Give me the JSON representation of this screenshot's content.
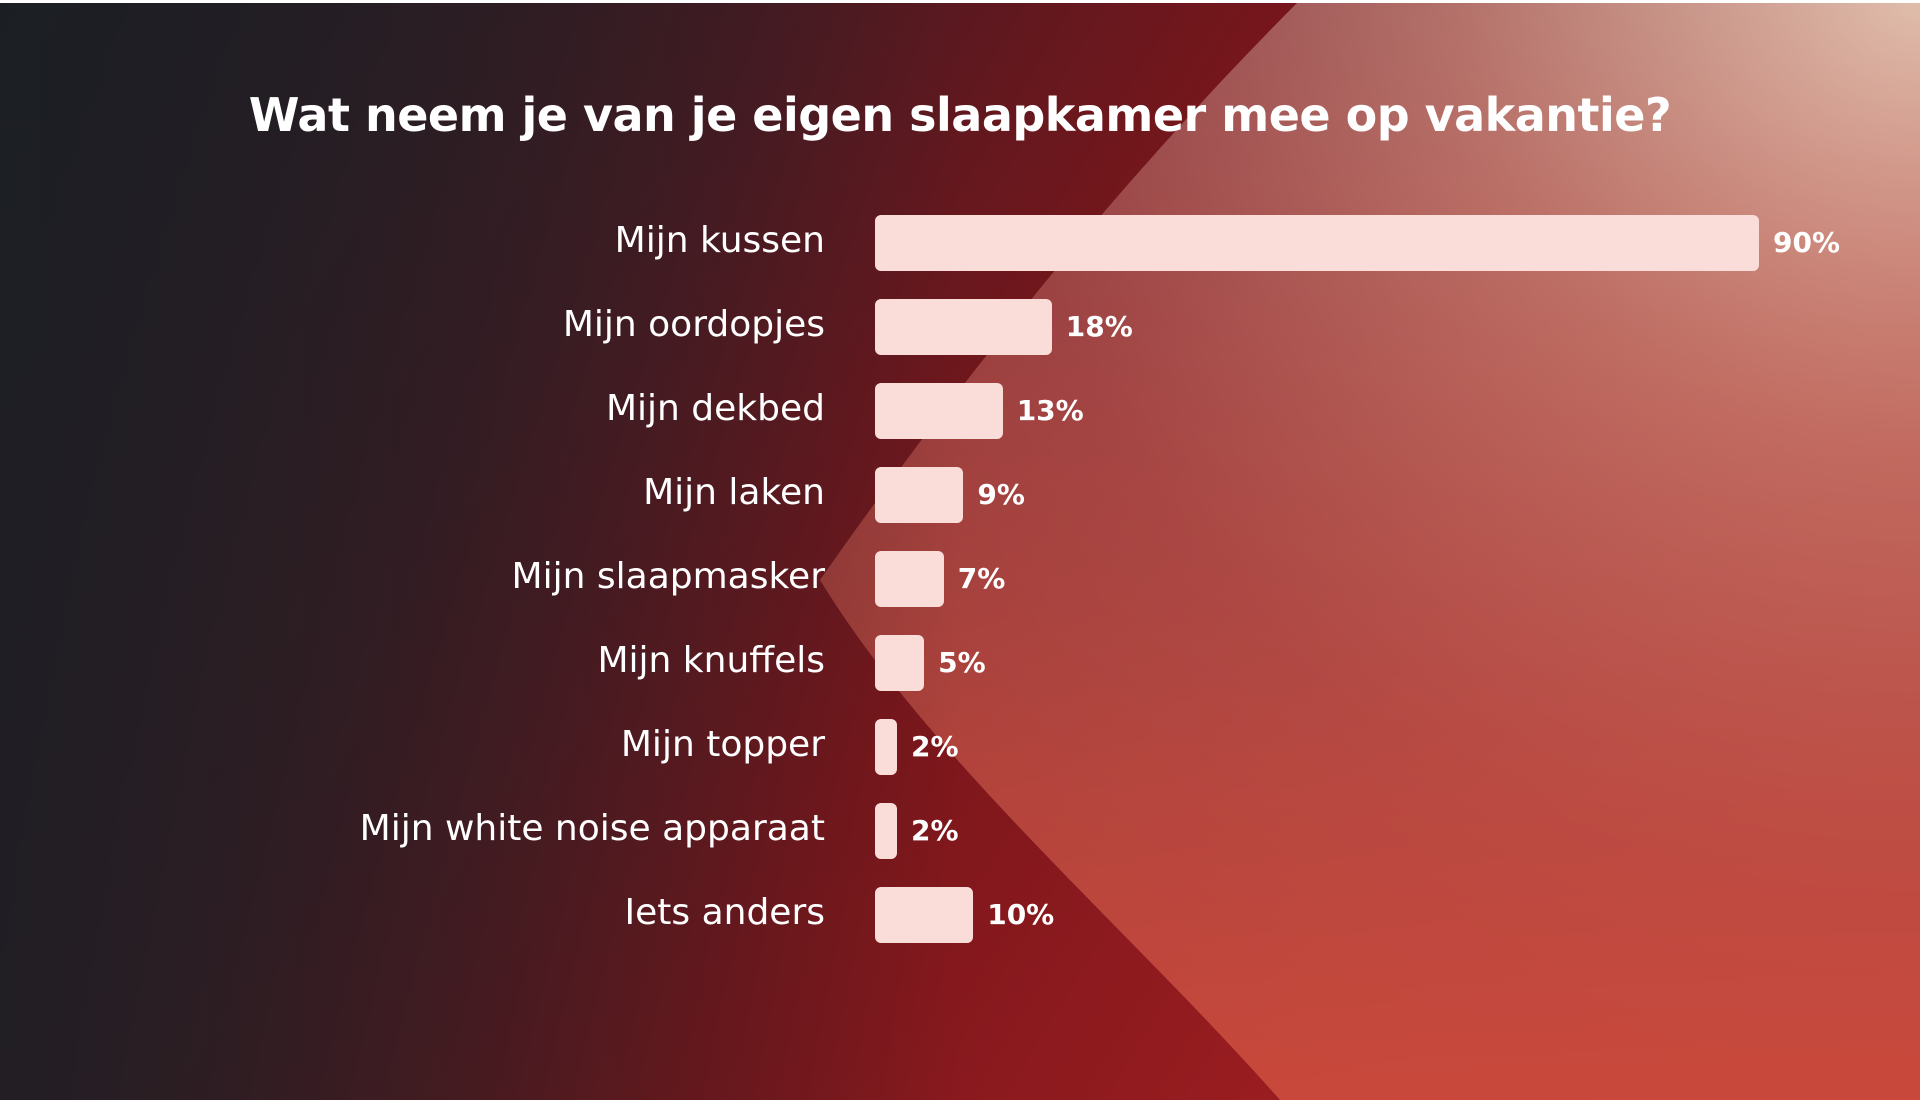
{
  "colors": {
    "background_dark": "#1b1f24",
    "background_red": "#7a1419",
    "background_coral": "#e2614d",
    "background_peach": "#e8c7b3",
    "bar": "#fadcd8",
    "text": "#ffffff"
  },
  "chart_data": {
    "type": "bar",
    "orientation": "horizontal",
    "title": "Wat neem je van je eigen slaapkamer mee op vakantie?",
    "xlabel": "",
    "ylabel": "",
    "grid": false,
    "xlim": [
      0,
      100
    ],
    "categories": [
      "Mijn kussen",
      "Mijn oordopjes",
      "Mijn dekbed",
      "Mijn laken",
      "Mijn slaapmasker",
      "Mijn knuffels",
      "Mijn topper",
      "Mijn white noise apparaat",
      "Iets anders"
    ],
    "values": [
      90,
      18,
      13,
      9,
      7,
      5,
      2,
      2,
      10
    ],
    "value_labels": [
      "90%",
      "18%",
      "13%",
      "9%",
      "7%",
      "5%",
      "2%",
      "2%",
      "10%"
    ]
  }
}
